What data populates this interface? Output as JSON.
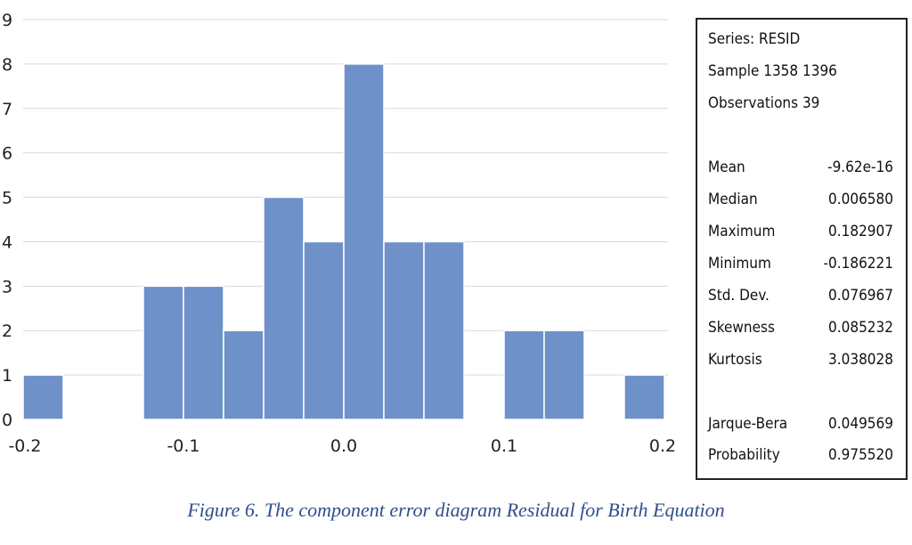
{
  "chart_data": {
    "type": "bar",
    "bin_edges": [
      -0.2,
      -0.175,
      -0.15,
      -0.125,
      -0.1,
      -0.075,
      -0.05,
      -0.025,
      0.0,
      0.025,
      0.05,
      0.075,
      0.1,
      0.125,
      0.15,
      0.175,
      0.2
    ],
    "values": [
      1,
      0,
      0,
      3,
      3,
      2,
      5,
      4,
      8,
      4,
      4,
      0,
      2,
      2,
      0,
      1
    ],
    "xlim": [
      -0.2,
      0.2
    ],
    "ylim": [
      0,
      9
    ],
    "xticks": [
      "-0.2",
      "-0.1",
      "0.0",
      "0.1",
      "0.2"
    ],
    "yticks": [
      "0",
      "1",
      "2",
      "3",
      "4",
      "5",
      "6",
      "7",
      "8",
      "9"
    ],
    "bar_color": "#6f91c9",
    "grid": true,
    "title": "",
    "xlabel": "",
    "ylabel": ""
  },
  "stats": {
    "series": "Series: RESID",
    "sample": "Sample 1358 1396",
    "observations": "Observations 39",
    "rows": [
      {
        "label": "Mean",
        "value": "-9.62e-16"
      },
      {
        "label": "Median",
        "value": "0.006580"
      },
      {
        "label": "Maximum",
        "value": "0.182907"
      },
      {
        "label": "Minimum",
        "value": "-0.186221"
      },
      {
        "label": "Std. Dev.",
        "value": "0.076967"
      },
      {
        "label": "Skewness",
        "value": "0.085232"
      },
      {
        "label": "Kurtosis",
        "value": "3.038028"
      },
      {
        "label": "Jarque-Bera",
        "value": "0.049569"
      },
      {
        "label": "Probability",
        "value": "0.975520"
      }
    ]
  },
  "caption": "Figure 6. The component error diagram Residual for Birth Equation"
}
